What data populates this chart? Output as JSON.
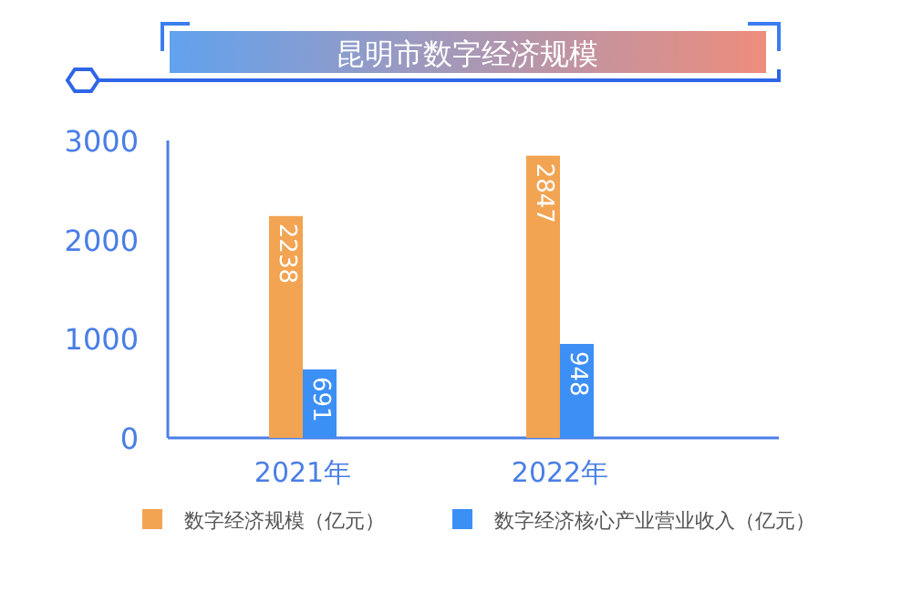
{
  "chart_data": {
    "type": "bar",
    "title": "昆明市数字经济规模",
    "categories": [
      "2021年",
      "2022年"
    ],
    "series": [
      {
        "name": "数字经济规模（亿元）",
        "color": "#f2a452",
        "values": [
          2238,
          2847
        ]
      },
      {
        "name": "数字经济核心产业营业收入（亿元）",
        "color": "#3b8ff5",
        "values": [
          691,
          948
        ]
      }
    ],
    "ylim": [
      0,
      3000
    ],
    "yticks": [
      0,
      1000,
      2000,
      3000
    ],
    "data_labels": true,
    "legend": "bottom"
  }
}
